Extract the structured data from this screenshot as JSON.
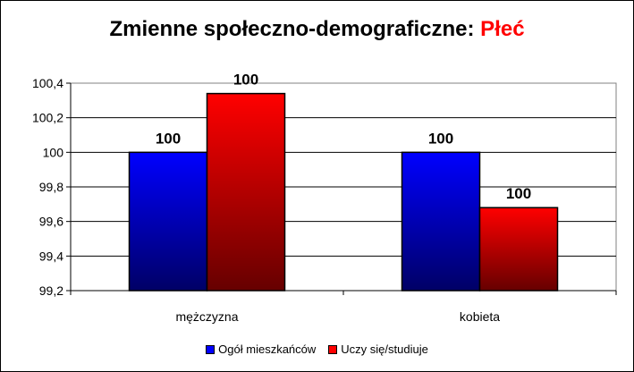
{
  "chart_data": {
    "type": "bar",
    "title": "Zmienne społeczno-demograficzne:",
    "title_highlight": "Płeć",
    "categories": [
      "mężczyzna",
      "kobieta"
    ],
    "ylim": [
      99.2,
      100.4
    ],
    "yticks": [
      99.2,
      99.4,
      99.6,
      99.8,
      100,
      100.2,
      100.4
    ],
    "ytick_labels": [
      "99,2",
      "99,4",
      "99,6",
      "99,8",
      "100",
      "100,2",
      "100,4"
    ],
    "grid": true,
    "legend": "bottom",
    "series": [
      {
        "name": "Ogół mieszkańców",
        "values": [
          100,
          100
        ],
        "data_labels": [
          "100",
          "100"
        ],
        "color": "#0000ff",
        "color_dark": "#000066"
      },
      {
        "name": "Uczy się/studiuje",
        "values": [
          100.34,
          99.68
        ],
        "data_labels": [
          "100",
          "100"
        ],
        "color": "#ff0000",
        "color_dark": "#660000"
      }
    ]
  }
}
